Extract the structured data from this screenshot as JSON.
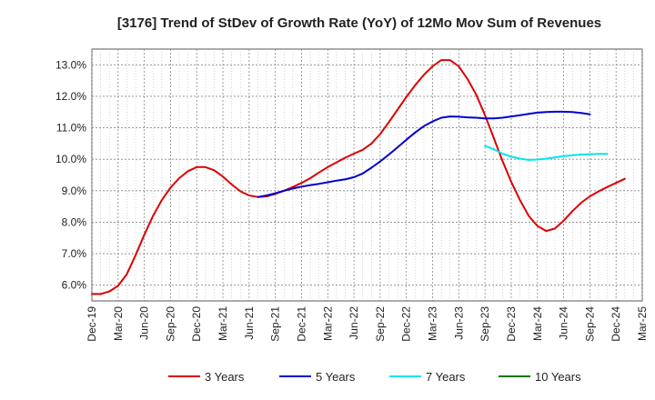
{
  "chart_data": {
    "type": "line",
    "title": "[3176]  Trend of StDev of Growth Rate (YoY) of 12Mo Mov Sum of Revenues",
    "xlabel": "",
    "ylabel": "",
    "ylim": [
      5.5,
      13.5
    ],
    "y_ticks": [
      6.0,
      7.0,
      8.0,
      9.0,
      10.0,
      11.0,
      12.0,
      13.0
    ],
    "y_tick_labels": [
      "6.0%",
      "7.0%",
      "8.0%",
      "9.0%",
      "10.0%",
      "11.0%",
      "12.0%",
      "13.0%"
    ],
    "x_start": "Dec-19",
    "x_tick_labels": [
      "Dec-19",
      "Mar-20",
      "Jun-20",
      "Sep-20",
      "Dec-20",
      "Mar-21",
      "Jun-21",
      "Sep-21",
      "Dec-21",
      "Mar-22",
      "Jun-22",
      "Sep-22",
      "Dec-22",
      "Mar-23",
      "Jun-23",
      "Sep-23",
      "Dec-23",
      "Mar-24",
      "Jun-24",
      "Sep-24",
      "Dec-24",
      "Mar-25"
    ],
    "grid": true,
    "legend_position": "bottom",
    "series": [
      {
        "name": "3 Years",
        "color": "#dd0000",
        "start_index": 0,
        "values": [
          5.72,
          5.72,
          5.8,
          5.98,
          6.35,
          6.95,
          7.6,
          8.2,
          8.7,
          9.1,
          9.4,
          9.62,
          9.75,
          9.75,
          9.65,
          9.45,
          9.2,
          8.98,
          8.85,
          8.8,
          8.82,
          8.9,
          9.0,
          9.12,
          9.25,
          9.4,
          9.58,
          9.75,
          9.9,
          10.05,
          10.18,
          10.3,
          10.5,
          10.8,
          11.18,
          11.58,
          11.98,
          12.35,
          12.68,
          12.95,
          13.15,
          13.15,
          12.95,
          12.55,
          12.05,
          11.4,
          10.68,
          9.95,
          9.28,
          8.7,
          8.2,
          7.88,
          7.72,
          7.8,
          8.05,
          8.35,
          8.62,
          8.82,
          8.98,
          9.12,
          9.25,
          9.38
        ]
      },
      {
        "name": "5 Years",
        "color": "#0000cc",
        "start_index": 19,
        "values": [
          8.8,
          8.85,
          8.92,
          9.0,
          9.07,
          9.13,
          9.18,
          9.22,
          9.27,
          9.32,
          9.36,
          9.43,
          9.55,
          9.73,
          9.93,
          10.15,
          10.38,
          10.62,
          10.85,
          11.05,
          11.2,
          11.32,
          11.36,
          11.35,
          11.33,
          11.32,
          11.3,
          11.3,
          11.32,
          11.36,
          11.4,
          11.44,
          11.48,
          11.5,
          11.51,
          11.51,
          11.5,
          11.47,
          11.43
        ]
      },
      {
        "name": "7 Years",
        "color": "#00e5ee",
        "start_index": 45,
        "values": [
          10.42,
          10.32,
          10.18,
          10.08,
          10.02,
          9.98,
          9.99,
          10.02,
          10.06,
          10.1,
          10.13,
          10.15,
          10.16,
          10.17,
          10.17
        ]
      },
      {
        "name": "10 Years",
        "color": "#007700",
        "start_index": 0,
        "values": []
      }
    ]
  }
}
